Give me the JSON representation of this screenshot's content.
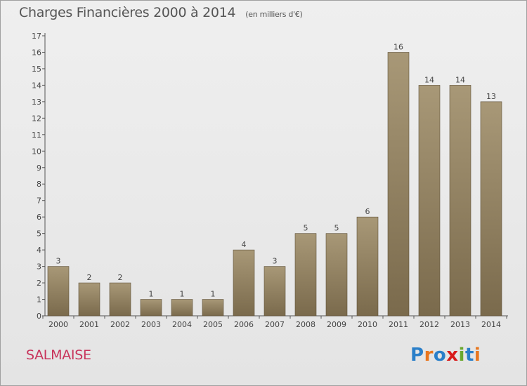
{
  "header": {
    "title": "Charges Financières 2000 à 2014",
    "subtitle": "(en milliers d'€)"
  },
  "footer": {
    "commune": "SALMAISE",
    "logo_text": "Proxiti"
  },
  "colors": {
    "bar_top": "#a89877",
    "bar_bottom": "#7a6a4c",
    "logo_letters": [
      "#2a7fc9",
      "#e8761e",
      "#2a7fc9",
      "#d81b1b",
      "#6aa82e",
      "#2a7fc9",
      "#e8761e"
    ]
  },
  "chart_data": {
    "type": "bar",
    "title": "Charges Financières 2000 à 2014",
    "subtitle": "(en milliers d'€)",
    "categories": [
      "2000",
      "2001",
      "2002",
      "2003",
      "2004",
      "2005",
      "2006",
      "2007",
      "2008",
      "2009",
      "2010",
      "2011",
      "2012",
      "2013",
      "2014"
    ],
    "values": [
      3,
      2,
      2,
      1,
      1,
      1,
      4,
      3,
      5,
      5,
      6,
      16,
      14,
      14,
      13
    ],
    "ylim": [
      0,
      17
    ],
    "yticks": [
      0,
      1,
      2,
      3,
      4,
      5,
      6,
      7,
      8,
      9,
      10,
      11,
      12,
      13,
      14,
      15,
      16,
      17
    ],
    "grid": false,
    "legend": "none"
  }
}
